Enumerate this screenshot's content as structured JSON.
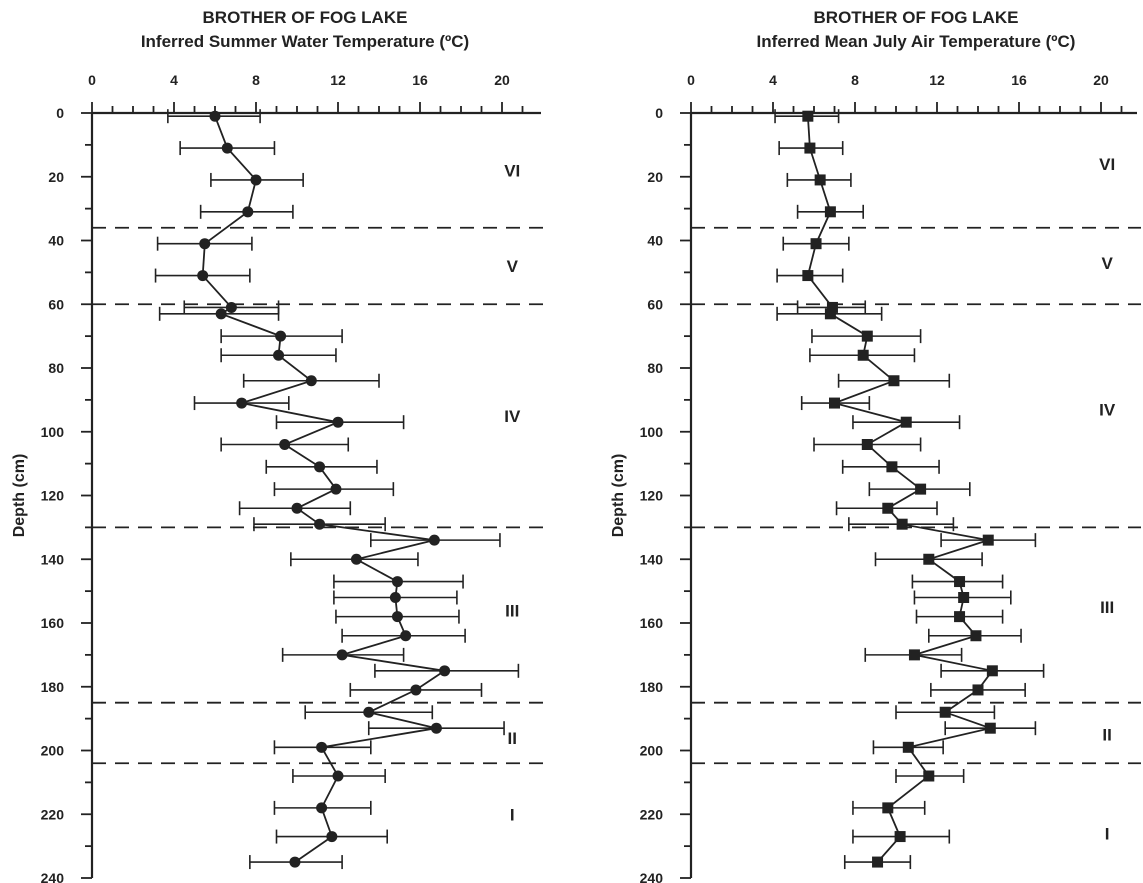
{
  "chart_data": [
    {
      "type": "scatter",
      "title": "BROTHER OF FOG LAKE",
      "subtitle": "Inferred Summer Water Temperature (ºC)",
      "xlabel": "",
      "ylabel": "Depth (cm)",
      "xlim": [
        0,
        22
      ],
      "ylim": [
        0,
        240
      ],
      "y_inverted": true,
      "x_axis_position": "top",
      "x_ticks": [
        "0",
        "4",
        "8",
        "12",
        "16",
        "20"
      ],
      "y_ticks": [
        "0",
        "20",
        "40",
        "60",
        "80",
        "100",
        "120",
        "140",
        "160",
        "180",
        "200",
        "220",
        "240"
      ],
      "marker": "circle",
      "zone_boundaries": [
        36,
        60,
        130,
        185,
        204
      ],
      "zones": [
        {
          "label": "VI",
          "depth": 18,
          "x": 20.5
        },
        {
          "label": "V",
          "depth": 48,
          "x": 20.5
        },
        {
          "label": "IV",
          "depth": 95,
          "x": 20.5
        },
        {
          "label": "III",
          "depth": 156,
          "x": 20.5
        },
        {
          "label": "II",
          "depth": 196,
          "x": 20.5
        },
        {
          "label": "I",
          "depth": 220,
          "x": 20.5
        }
      ],
      "series": [
        {
          "points": [
            {
              "depth": 1,
              "value": 6.0,
              "lo": 3.7,
              "hi": 8.2
            },
            {
              "depth": 11,
              "value": 6.6,
              "lo": 4.3,
              "hi": 8.9
            },
            {
              "depth": 21,
              "value": 8.0,
              "lo": 5.8,
              "hi": 10.3
            },
            {
              "depth": 31,
              "value": 7.6,
              "lo": 5.3,
              "hi": 9.8
            },
            {
              "depth": 41,
              "value": 5.5,
              "lo": 3.2,
              "hi": 7.8
            },
            {
              "depth": 51,
              "value": 5.4,
              "lo": 3.1,
              "hi": 7.7
            },
            {
              "depth": 61,
              "value": 6.8,
              "lo": 4.5,
              "hi": 9.1
            },
            {
              "depth": 63,
              "value": 6.3,
              "lo": 3.3,
              "hi": 9.1
            },
            {
              "depth": 70,
              "value": 9.2,
              "lo": 6.3,
              "hi": 12.2
            },
            {
              "depth": 76,
              "value": 9.1,
              "lo": 6.3,
              "hi": 11.9
            },
            {
              "depth": 84,
              "value": 10.7,
              "lo": 7.4,
              "hi": 14.0
            },
            {
              "depth": 91,
              "value": 7.3,
              "lo": 5.0,
              "hi": 9.6
            },
            {
              "depth": 97,
              "value": 12.0,
              "lo": 9.0,
              "hi": 15.2
            },
            {
              "depth": 104,
              "value": 9.4,
              "lo": 6.3,
              "hi": 12.5
            },
            {
              "depth": 111,
              "value": 11.1,
              "lo": 8.5,
              "hi": 13.9
            },
            {
              "depth": 118,
              "value": 11.9,
              "lo": 8.9,
              "hi": 14.7
            },
            {
              "depth": 124,
              "value": 10.0,
              "lo": 7.2,
              "hi": 12.6
            },
            {
              "depth": 129,
              "value": 11.1,
              "lo": 7.9,
              "hi": 14.3
            },
            {
              "depth": 134,
              "value": 16.7,
              "lo": 13.6,
              "hi": 19.9
            },
            {
              "depth": 140,
              "value": 12.9,
              "lo": 9.7,
              "hi": 15.9
            },
            {
              "depth": 147,
              "value": 14.9,
              "lo": 11.8,
              "hi": 18.1
            },
            {
              "depth": 152,
              "value": 14.8,
              "lo": 11.8,
              "hi": 17.8
            },
            {
              "depth": 158,
              "value": 14.9,
              "lo": 11.9,
              "hi": 17.9
            },
            {
              "depth": 164,
              "value": 15.3,
              "lo": 12.2,
              "hi": 18.2
            },
            {
              "depth": 170,
              "value": 12.2,
              "lo": 9.3,
              "hi": 15.2
            },
            {
              "depth": 175,
              "value": 17.2,
              "lo": 13.8,
              "hi": 20.8
            },
            {
              "depth": 181,
              "value": 15.8,
              "lo": 12.6,
              "hi": 19.0
            },
            {
              "depth": 188,
              "value": 13.5,
              "lo": 10.4,
              "hi": 16.6
            },
            {
              "depth": 193,
              "value": 16.8,
              "lo": 13.5,
              "hi": 20.1
            },
            {
              "depth": 199,
              "value": 11.2,
              "lo": 8.9,
              "hi": 13.6
            },
            {
              "depth": 208,
              "value": 12.0,
              "lo": 9.8,
              "hi": 14.3
            },
            {
              "depth": 218,
              "value": 11.2,
              "lo": 8.9,
              "hi": 13.6
            },
            {
              "depth": 227,
              "value": 11.7,
              "lo": 9.0,
              "hi": 14.4
            },
            {
              "depth": 235,
              "value": 9.9,
              "lo": 7.7,
              "hi": 12.2
            }
          ]
        }
      ]
    },
    {
      "type": "scatter",
      "title": "BROTHER OF FOG LAKE",
      "subtitle": "Inferred Mean July Air Temperature (ºC)",
      "xlabel": "",
      "ylabel": "Depth (cm)",
      "xlim": [
        0,
        22
      ],
      "ylim": [
        0,
        240
      ],
      "y_inverted": true,
      "x_axis_position": "top",
      "x_ticks": [
        "0",
        "4",
        "8",
        "12",
        "16",
        "20"
      ],
      "y_ticks": [
        "0",
        "20",
        "40",
        "60",
        "80",
        "100",
        "120",
        "140",
        "160",
        "180",
        "200",
        "220",
        "240"
      ],
      "marker": "square",
      "zone_boundaries": [
        36,
        60,
        130,
        185,
        204
      ],
      "zones": [
        {
          "label": "VI",
          "depth": 16,
          "x": 20.3
        },
        {
          "label": "V",
          "depth": 47,
          "x": 20.3
        },
        {
          "label": "IV",
          "depth": 93,
          "x": 20.3
        },
        {
          "label": "III",
          "depth": 155,
          "x": 20.3
        },
        {
          "label": "II",
          "depth": 195,
          "x": 20.3
        },
        {
          "label": "I",
          "depth": 226,
          "x": 20.3
        }
      ],
      "series": [
        {
          "points": [
            {
              "depth": 1,
              "value": 5.7,
              "lo": 4.1,
              "hi": 7.2
            },
            {
              "depth": 11,
              "value": 5.8,
              "lo": 4.3,
              "hi": 7.4
            },
            {
              "depth": 21,
              "value": 6.3,
              "lo": 4.7,
              "hi": 7.8
            },
            {
              "depth": 31,
              "value": 6.8,
              "lo": 5.2,
              "hi": 8.4
            },
            {
              "depth": 41,
              "value": 6.1,
              "lo": 4.5,
              "hi": 7.7
            },
            {
              "depth": 51,
              "value": 5.7,
              "lo": 4.2,
              "hi": 7.4
            },
            {
              "depth": 61,
              "value": 6.9,
              "lo": 5.2,
              "hi": 8.5
            },
            {
              "depth": 63,
              "value": 6.8,
              "lo": 4.2,
              "hi": 9.3
            },
            {
              "depth": 70,
              "value": 8.6,
              "lo": 5.9,
              "hi": 11.2
            },
            {
              "depth": 76,
              "value": 8.4,
              "lo": 5.8,
              "hi": 10.9
            },
            {
              "depth": 84,
              "value": 9.9,
              "lo": 7.2,
              "hi": 12.6
            },
            {
              "depth": 91,
              "value": 7.0,
              "lo": 5.4,
              "hi": 8.7
            },
            {
              "depth": 97,
              "value": 10.5,
              "lo": 7.9,
              "hi": 13.1
            },
            {
              "depth": 104,
              "value": 8.6,
              "lo": 6.0,
              "hi": 11.2
            },
            {
              "depth": 111,
              "value": 9.8,
              "lo": 7.4,
              "hi": 12.1
            },
            {
              "depth": 118,
              "value": 11.2,
              "lo": 8.7,
              "hi": 13.6
            },
            {
              "depth": 124,
              "value": 9.6,
              "lo": 7.1,
              "hi": 12.0
            },
            {
              "depth": 129,
              "value": 10.3,
              "lo": 7.7,
              "hi": 12.8
            },
            {
              "depth": 134,
              "value": 14.5,
              "lo": 12.2,
              "hi": 16.8
            },
            {
              "depth": 140,
              "value": 11.6,
              "lo": 9.0,
              "hi": 14.2
            },
            {
              "depth": 147,
              "value": 13.1,
              "lo": 10.8,
              "hi": 15.2
            },
            {
              "depth": 152,
              "value": 13.3,
              "lo": 10.9,
              "hi": 15.6
            },
            {
              "depth": 158,
              "value": 13.1,
              "lo": 11.0,
              "hi": 15.2
            },
            {
              "depth": 164,
              "value": 13.9,
              "lo": 11.6,
              "hi": 16.1
            },
            {
              "depth": 170,
              "value": 10.9,
              "lo": 8.5,
              "hi": 13.2
            },
            {
              "depth": 175,
              "value": 14.7,
              "lo": 12.2,
              "hi": 17.2
            },
            {
              "depth": 181,
              "value": 14.0,
              "lo": 11.7,
              "hi": 16.3
            },
            {
              "depth": 188,
              "value": 12.4,
              "lo": 10.0,
              "hi": 14.8
            },
            {
              "depth": 193,
              "value": 14.6,
              "lo": 12.4,
              "hi": 16.8
            },
            {
              "depth": 199,
              "value": 10.6,
              "lo": 8.9,
              "hi": 12.3
            },
            {
              "depth": 208,
              "value": 11.6,
              "lo": 10.0,
              "hi": 13.3
            },
            {
              "depth": 218,
              "value": 9.6,
              "lo": 7.9,
              "hi": 11.4
            },
            {
              "depth": 227,
              "value": 10.2,
              "lo": 7.9,
              "hi": 12.6
            },
            {
              "depth": 235,
              "value": 9.1,
              "lo": 7.5,
              "hi": 10.7
            }
          ]
        }
      ]
    }
  ]
}
